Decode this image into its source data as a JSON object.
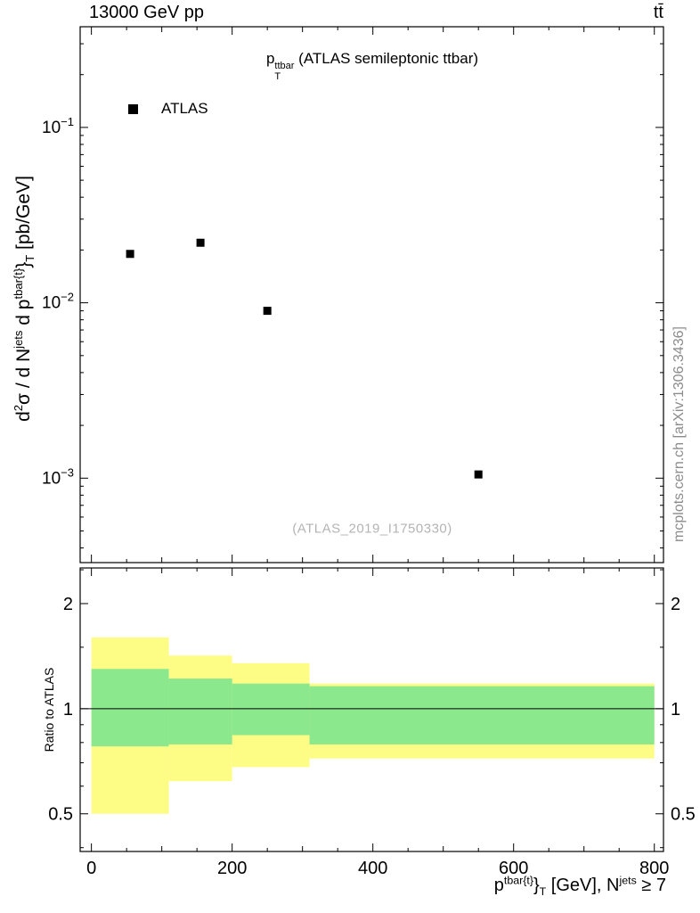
{
  "header": {
    "left": "13000 GeV pp",
    "right": "tt̄"
  },
  "plot_title": {
    "base": "p",
    "sup": "ttbar",
    "sub": "T",
    "rest": " (ATLAS semileptonic ttbar)"
  },
  "legend": {
    "label": "ATLAS",
    "marker": "filled-square"
  },
  "axis_titles": {
    "y_main": {
      "p1": "d",
      "p1sup": "2",
      "p2": "σ / d N",
      "p2sup": "jets",
      "p3": " d p",
      "p3sup": "tbar{t}",
      "brace": "}",
      "p3sub": "T",
      "p4": " [pb/GeV]"
    },
    "y_ratio": "Ratio to ATLAS",
    "x": {
      "p1": "p",
      "p1sup": "tbar{t}",
      "brace": "}",
      "p1sub": "T",
      "p2": " [GeV], N",
      "p2sup": "jets",
      "p3": " ≥ 7"
    }
  },
  "watermark": "(ATLAS_2019_I1750330)",
  "side_note": "mcplots.cern.ch [arXiv:1306.3436]",
  "colors": {
    "band_outer": "#fdfd86",
    "band_inner": "#8ce88c",
    "marker": "#000000",
    "watermark_gray": "#b4b4b4",
    "side_note_gray": "#8c8c8c"
  },
  "chart_data": [
    {
      "type": "scatter",
      "panel": "main",
      "title": "p_T^{ttbar} (ATLAS semileptonic ttbar)",
      "xlabel": "p_T^{tbar{t}} [GeV], N^{jets} >= 7",
      "ylabel": "d^2σ / d N^{jets} d p_T^{tbar{t}} [pb/GeV]",
      "xscale": "linear",
      "yscale": "log",
      "xlim": [
        -16,
        813
      ],
      "ylim": [
        0.00033,
        0.375
      ],
      "grid": false,
      "x_ticks_major": [
        0,
        200,
        400,
        600,
        800
      ],
      "x_tick_minor_step": 50,
      "y_ticks_labeled": [
        0.001,
        0.01,
        0.1
      ],
      "series": [
        {
          "name": "ATLAS",
          "marker": "filled-square",
          "points": [
            {
              "x": 55,
              "y": 0.019
            },
            {
              "x": 155,
              "y": 0.022
            },
            {
              "x": 250,
              "y": 0.009
            },
            {
              "x": 550,
              "y": 0.00105
            }
          ]
        }
      ]
    },
    {
      "type": "bands",
      "panel": "ratio",
      "ylabel": "Ratio to ATLAS",
      "yscale": "log",
      "ylim": [
        0.39,
        2.53
      ],
      "reference_line_y": 1,
      "y_ticks_labeled": [
        0.5,
        1,
        2
      ],
      "y_ticks_minor": [
        0.4,
        0.6,
        0.7,
        0.8,
        0.9,
        1.5,
        2.5
      ],
      "bands": [
        {
          "x0": 0,
          "x1": 110,
          "outer_lo": 0.5,
          "outer_hi": 1.6,
          "inner_lo": 0.78,
          "inner_hi": 1.3
        },
        {
          "x0": 110,
          "x1": 200,
          "outer_lo": 0.62,
          "outer_hi": 1.42,
          "inner_lo": 0.79,
          "inner_hi": 1.22
        },
        {
          "x0": 200,
          "x1": 310,
          "outer_lo": 0.68,
          "outer_hi": 1.35,
          "inner_lo": 0.84,
          "inner_hi": 1.18
        },
        {
          "x0": 310,
          "x1": 800,
          "outer_lo": 0.72,
          "outer_hi": 1.18,
          "inner_lo": 0.79,
          "inner_hi": 1.16
        }
      ]
    }
  ]
}
